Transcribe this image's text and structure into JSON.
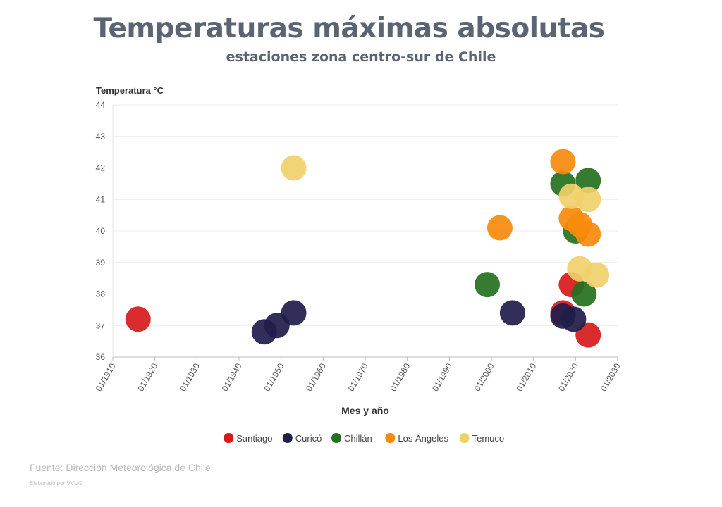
{
  "chart_data": {
    "type": "scatter",
    "title": "Temperaturas máximas absolutas",
    "subtitle": "estaciones zona centro-sur de Chile",
    "xlabel": "Mes y año",
    "ylabel": "Temperatura °C",
    "xlim": [
      1910,
      2030
    ],
    "ylim": [
      36,
      44
    ],
    "x_ticks": [
      "01/1910",
      "01/1920",
      "01/1930",
      "01/1940",
      "01/1950",
      "01/1960",
      "01/1970",
      "01/1980",
      "01/1990",
      "01/2000",
      "01/2010",
      "01/2020",
      "01/2030"
    ],
    "y_ticks": [
      "36",
      "37",
      "38",
      "39",
      "40",
      "41",
      "42",
      "43",
      "44"
    ],
    "grid": true,
    "legend_position": "bottom-center",
    "series": [
      {
        "name": "Santiago",
        "color": "#d7191c",
        "points": [
          {
            "x": 1916.0,
            "y": 37.2
          },
          {
            "x": 2017.0,
            "y": 37.4
          },
          {
            "x": 2019.0,
            "y": 38.3
          },
          {
            "x": 2023.0,
            "y": 36.7
          }
        ]
      },
      {
        "name": "Curicó",
        "color": "#1f1d4b",
        "points": [
          {
            "x": 1946.0,
            "y": 36.8
          },
          {
            "x": 1949.0,
            "y": 37.0
          },
          {
            "x": 1953.0,
            "y": 37.4
          },
          {
            "x": 2005.0,
            "y": 37.4
          },
          {
            "x": 2017.0,
            "y": 37.3
          },
          {
            "x": 2019.5,
            "y": 37.2
          }
        ]
      },
      {
        "name": "Chillán",
        "color": "#24701e",
        "points": [
          {
            "x": 1999.0,
            "y": 38.3
          },
          {
            "x": 2017.0,
            "y": 41.5
          },
          {
            "x": 2020.0,
            "y": 40.0
          },
          {
            "x": 2022.0,
            "y": 38.0
          },
          {
            "x": 2023.0,
            "y": 41.6
          }
        ]
      },
      {
        "name": "Los Ángeles",
        "color": "#f88a0c",
        "points": [
          {
            "x": 2002.0,
            "y": 40.1
          },
          {
            "x": 2017.0,
            "y": 42.2
          },
          {
            "x": 2019.0,
            "y": 40.4
          },
          {
            "x": 2021.0,
            "y": 40.2
          },
          {
            "x": 2023.0,
            "y": 39.9
          }
        ]
      },
      {
        "name": "Temuco",
        "color": "#f0d06a",
        "points": [
          {
            "x": 1953.0,
            "y": 42.0
          },
          {
            "x": 2019.0,
            "y": 41.1
          },
          {
            "x": 2021.0,
            "y": 38.8
          },
          {
            "x": 2023.0,
            "y": 41.0
          },
          {
            "x": 2025.0,
            "y": 38.6
          }
        ]
      }
    ]
  },
  "footer": {
    "source": "Fuente: Dirección Meteorológica de Chile",
    "credit": "Elaborado por VVUG"
  }
}
